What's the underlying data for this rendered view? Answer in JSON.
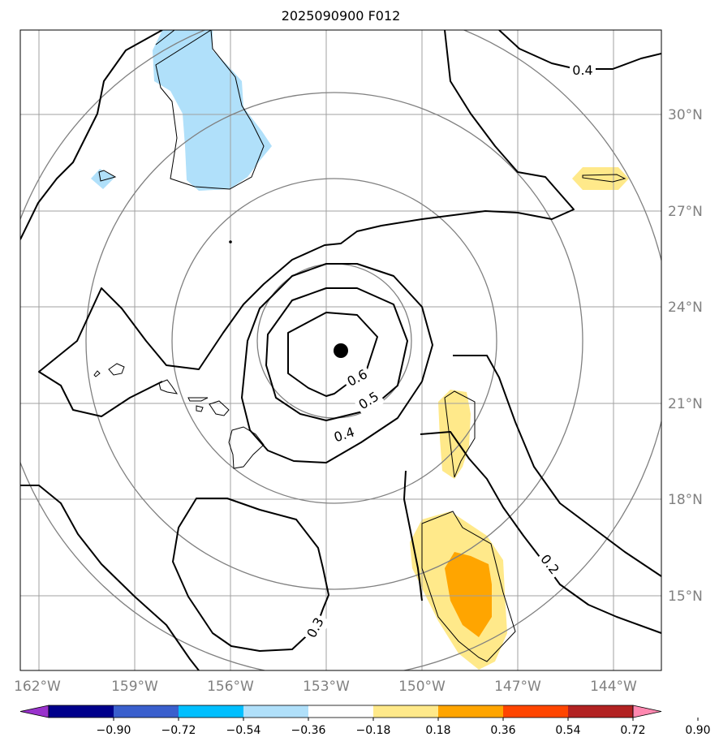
{
  "title": "2025090900 F012",
  "map": {
    "lon_labels": [
      "162°W",
      "159°W",
      "156°W",
      "153°W",
      "150°W",
      "147°W",
      "144°W"
    ],
    "lat_labels": [
      "30°N",
      "27°N",
      "24°N",
      "21°N",
      "18°N",
      "15°N"
    ],
    "contour_labels": [
      "0.4",
      "0.6",
      "0.5",
      "0.4",
      "0.3",
      "0.2"
    ],
    "center_marker": "storm-center-dot"
  },
  "colorbar": {
    "tick_labels": [
      "−0.90",
      "−0.72",
      "−0.54",
      "−0.36",
      "−0.18",
      "0.18",
      "0.36",
      "0.54",
      "0.72",
      "0.90"
    ],
    "colors": [
      "#9932cc",
      "#00008b",
      "#3a5fcd",
      "#00bfff",
      "#b0e0fa",
      "#ffffff",
      "#ffe98a",
      "#ffa500",
      "#ff4500",
      "#b22222",
      "#ff88b0"
    ]
  },
  "colors": {
    "grid": "#a0a0a0",
    "range_rings": "#808080",
    "contour": "#000000",
    "positive_shade_light": "#ffe98a",
    "positive_shade_dark": "#ffa500",
    "negative_shade": "#b0e0fa"
  }
}
